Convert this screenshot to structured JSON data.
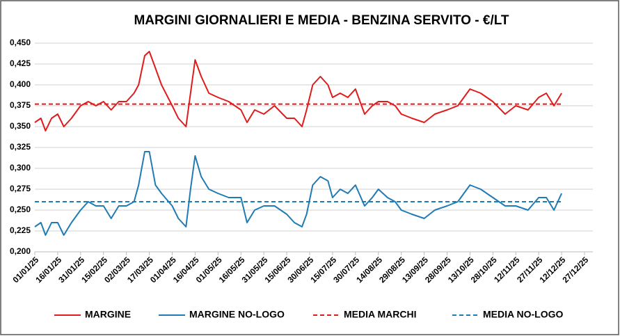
{
  "chart_data": {
    "type": "line",
    "title": "MARGINI GIORNALIERI E MEDIA - BENZINA SERVITO - €/LT",
    "x": [
      "01/01/25",
      "05/01/25",
      "08/01/25",
      "12/01/25",
      "16/01/25",
      "20/01/25",
      "25/01/25",
      "31/01/25",
      "05/02/25",
      "10/02/25",
      "15/02/25",
      "20/02/25",
      "25/02/25",
      "02/03/25",
      "07/03/25",
      "10/03/25",
      "14/03/25",
      "17/03/25",
      "21/03/25",
      "25/03/25",
      "01/04/25",
      "05/04/25",
      "10/04/25",
      "13/04/25",
      "16/04/25",
      "20/04/25",
      "25/04/25",
      "01/05/25",
      "08/05/25",
      "16/05/25",
      "20/05/25",
      "25/05/25",
      "31/05/25",
      "07/06/25",
      "15/06/25",
      "20/06/25",
      "25/06/25",
      "28/06/25",
      "02/07/25",
      "07/07/25",
      "12/07/25",
      "15/07/25",
      "20/07/25",
      "25/07/25",
      "30/07/25",
      "05/08/25",
      "10/08/25",
      "14/08/25",
      "20/08/25",
      "25/08/25",
      "29/08/25",
      "05/09/25",
      "13/09/25",
      "20/09/25",
      "28/09/25",
      "05/10/25",
      "13/10/25",
      "20/10/25",
      "28/10/25",
      "05/11/25",
      "12/11/25",
      "20/11/25",
      "27/11/25",
      "02/12/25",
      "07/12/25",
      "12/12/25"
    ],
    "series": [
      {
        "name": "MARGINE",
        "color": "#e01b1b",
        "values": [
          0.355,
          0.36,
          0.345,
          0.36,
          0.365,
          0.35,
          0.36,
          0.375,
          0.38,
          0.375,
          0.38,
          0.37,
          0.38,
          0.38,
          0.39,
          0.4,
          0.435,
          0.44,
          0.42,
          0.4,
          0.375,
          0.36,
          0.35,
          0.39,
          0.43,
          0.41,
          0.39,
          0.385,
          0.38,
          0.37,
          0.355,
          0.37,
          0.365,
          0.375,
          0.36,
          0.36,
          0.35,
          0.37,
          0.4,
          0.41,
          0.4,
          0.385,
          0.39,
          0.385,
          0.395,
          0.365,
          0.375,
          0.38,
          0.38,
          0.375,
          0.365,
          0.36,
          0.355,
          0.365,
          0.37,
          0.375,
          0.395,
          0.39,
          0.38,
          0.365,
          0.375,
          0.37,
          0.385,
          0.39,
          0.375,
          0.39
        ]
      },
      {
        "name": "MARGINE NO-LOGO",
        "color": "#1f7bb4",
        "values": [
          0.23,
          0.235,
          0.22,
          0.235,
          0.235,
          0.22,
          0.235,
          0.25,
          0.26,
          0.255,
          0.255,
          0.24,
          0.255,
          0.255,
          0.26,
          0.28,
          0.32,
          0.32,
          0.28,
          0.27,
          0.255,
          0.24,
          0.23,
          0.275,
          0.315,
          0.29,
          0.275,
          0.27,
          0.265,
          0.265,
          0.235,
          0.25,
          0.255,
          0.255,
          0.245,
          0.235,
          0.23,
          0.245,
          0.28,
          0.29,
          0.285,
          0.265,
          0.275,
          0.27,
          0.28,
          0.255,
          0.265,
          0.275,
          0.265,
          0.26,
          0.25,
          0.245,
          0.24,
          0.25,
          0.255,
          0.26,
          0.28,
          0.275,
          0.265,
          0.255,
          0.255,
          0.25,
          0.265,
          0.265,
          0.25,
          0.27
        ]
      },
      {
        "name": "MEDIA MARCHI",
        "color": "#e01b1b",
        "dashed": true,
        "value": 0.377
      },
      {
        "name": "MEDIA NO-LOGO",
        "color": "#1f7bb4",
        "dashed": true,
        "value": 0.26
      }
    ],
    "xlim": [
      "01/01/25",
      "27/12/25"
    ],
    "xticks": [
      "01/01/25",
      "16/01/25",
      "31/01/25",
      "15/02/25",
      "02/03/25",
      "17/03/25",
      "01/04/25",
      "16/04/25",
      "01/05/25",
      "16/05/25",
      "31/05/25",
      "15/06/25",
      "30/06/25",
      "15/07/25",
      "30/07/25",
      "14/08/25",
      "29/08/25",
      "13/09/25",
      "28/09/25",
      "13/10/25",
      "28/10/25",
      "12/11/25",
      "27/11/25",
      "12/12/25",
      "27/12/25"
    ],
    "ylim": [
      0.2,
      0.45
    ],
    "yticks": [
      {
        "value": 0.2,
        "label": "0,200"
      },
      {
        "value": 0.225,
        "label": "0,225"
      },
      {
        "value": 0.25,
        "label": "0,250"
      },
      {
        "value": 0.275,
        "label": "0,275"
      },
      {
        "value": 0.3,
        "label": "0,300"
      },
      {
        "value": 0.325,
        "label": "0,325"
      },
      {
        "value": 0.35,
        "label": "0,350"
      },
      {
        "value": 0.375,
        "label": "0,375"
      },
      {
        "value": 0.4,
        "label": "0,400"
      },
      {
        "value": 0.425,
        "label": "0,425"
      },
      {
        "value": 0.45,
        "label": "0,450"
      }
    ],
    "grid": true
  }
}
